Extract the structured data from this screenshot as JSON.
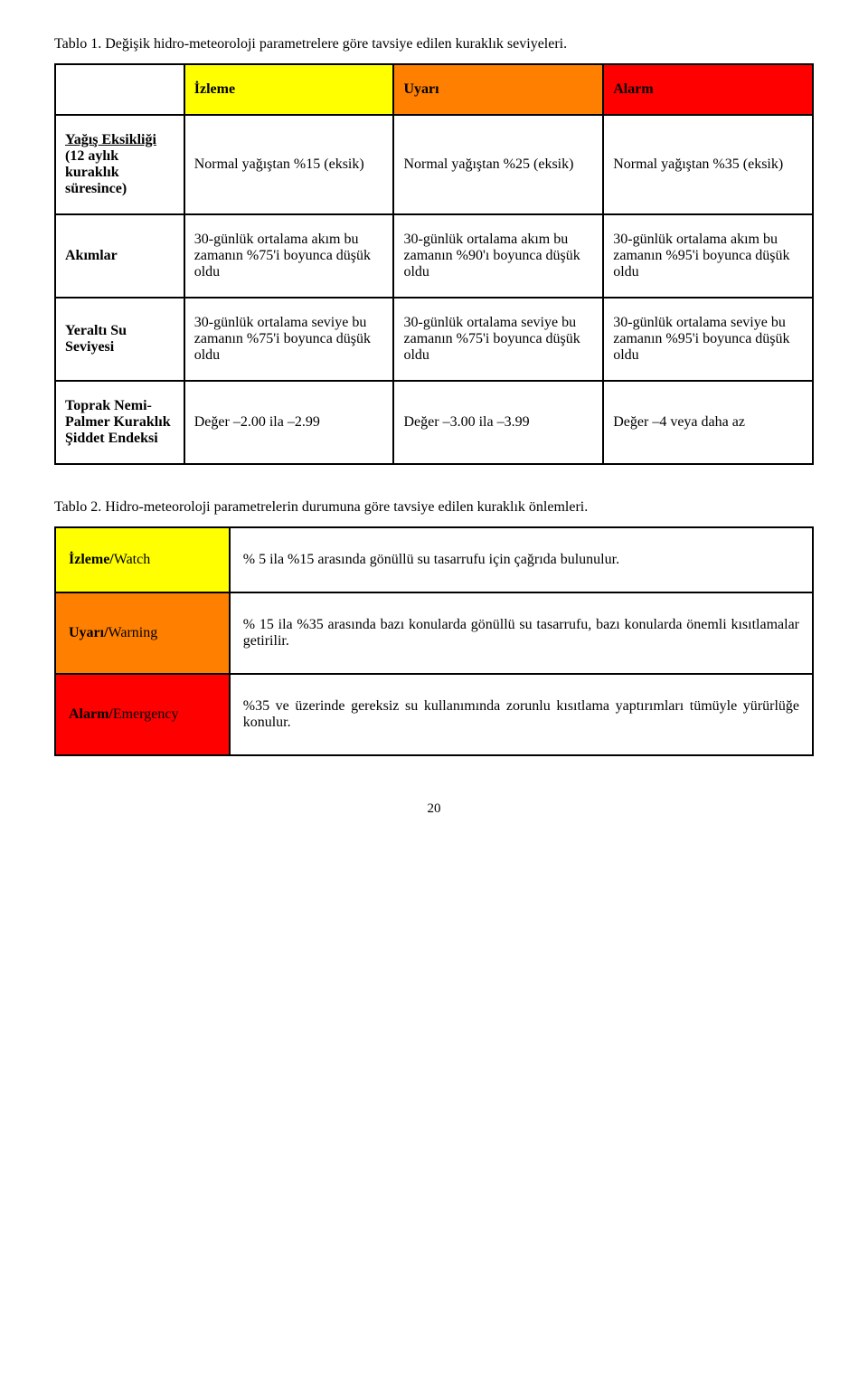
{
  "colors": {
    "izleme": "#ffff00",
    "uyari": "#ff8000",
    "alarm": "#ff0000"
  },
  "table1": {
    "caption": "Tablo 1. Değişik hidro-meteoroloji parametrelere göre tavsiye edilen kuraklık seviyeleri.",
    "header": {
      "c1": "İzleme",
      "c2": "Uyarı",
      "c3": "Alarm"
    },
    "rows": [
      {
        "label_main": "Yağış Eksikliği",
        "label_rest": "(12 aylık kuraklık süresince)",
        "underline_main": true,
        "c1": "Normal yağıştan %15 (eksik)",
        "c2": "Normal yağıştan %25 (eksik)",
        "c3": "Normal yağıştan %35 (eksik)"
      },
      {
        "label_main": "Akımlar",
        "label_rest": "",
        "underline_main": false,
        "c1": "30-günlük ortalama akım bu zamanın %75'i boyunca düşük oldu",
        "c2": "30-günlük ortalama akım bu zamanın %90'ı boyunca düşük oldu",
        "c3": "30-günlük ortalama akım bu zamanın %95'i boyunca düşük oldu"
      },
      {
        "label_main": "Yeraltı Su Seviyesi",
        "label_rest": "",
        "underline_main": false,
        "c1": "30-günlük ortalama seviye bu zamanın %75'i boyunca düşük oldu",
        "c2": "30-günlük ortalama seviye bu zamanın %75'i boyunca düşük oldu",
        "c3": "30-günlük ortalama seviye bu zamanın %95'i boyunca düşük oldu"
      },
      {
        "label_main": "Toprak Nemi- Palmer Kuraklık Şiddet Endeksi",
        "label_rest": "",
        "underline_main": false,
        "c1": "Değer –2.00 ila –2.99",
        "c2": "Değer –3.00 ila –3.99",
        "c3": "Değer –4 veya daha az"
      }
    ]
  },
  "table2": {
    "caption": "Tablo 2. Hidro-meteoroloji parametrelerin durumuna göre tavsiye edilen kuraklık önlemleri.",
    "rows": [
      {
        "label_bold": "İzleme/",
        "label_sub": "Watch",
        "bg": "#ffff00",
        "desc": "% 5 ila %15 arasında gönüllü su tasarrufu için çağrıda bulunulur."
      },
      {
        "label_bold": "Uyarı/",
        "label_sub": "Warning",
        "bg": "#ff8000",
        "desc": "% 15 ila %35 arasında bazı konularda gönüllü su tasarrufu, bazı konularda önemli kısıtlamalar getirilir."
      },
      {
        "label_bold": "Alarm/",
        "label_sub": "Emergency",
        "bg": "#ff0000",
        "desc": "%35 ve üzerinde gereksiz su kullanımında zorunlu kısıtlama yaptırımları tümüyle yürürlüğe konulur."
      }
    ]
  },
  "page_number": "20"
}
